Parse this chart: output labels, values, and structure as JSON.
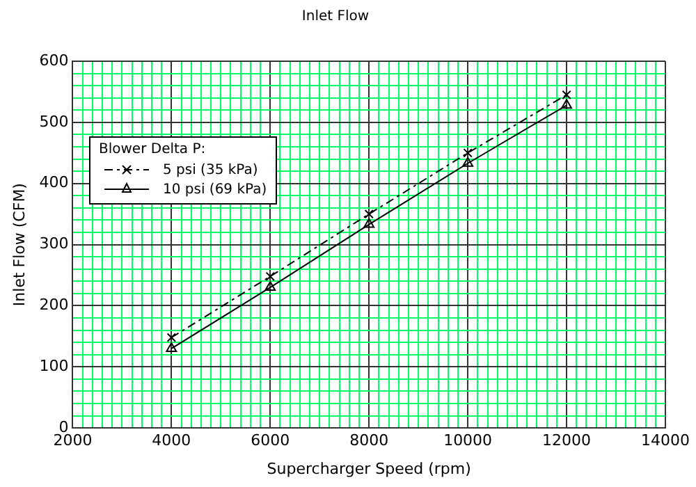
{
  "chart_data": {
    "type": "line",
    "title": "Inlet Flow",
    "xlabel": "Supercharger Speed (rpm)",
    "ylabel": "Inlet Flow (CFM)",
    "legend_title": "Blower Delta P:",
    "legend": "top left",
    "grid": true,
    "x": [
      4000,
      6000,
      8000,
      10000,
      12000
    ],
    "series": [
      {
        "name": "5 psi (35 kPa)",
        "color": "#000000",
        "values": [
          148,
          248,
          350,
          450,
          545
        ],
        "marker": "cross",
        "line_style": "dashed"
      },
      {
        "name": "10 psi (69 kPa)",
        "color": "#000000",
        "values": [
          130,
          230,
          333,
          433,
          528
        ],
        "marker": "triangle",
        "line_style": "solid"
      }
    ],
    "xlim": [
      2000,
      14000
    ],
    "xticks": [
      2000,
      {
        "value": 2200,
        "label": null
      },
      {
        "value": 2400,
        "label": null
      },
      {
        "value": 2600,
        "label": null
      },
      {
        "value": 2800,
        "label": null
      },
      {
        "value": 3000,
        "label": null
      },
      {
        "value": 3200,
        "label": null
      },
      {
        "value": 3400,
        "label": null
      },
      {
        "value": 3600,
        "label": null
      },
      {
        "value": 3800,
        "label": null
      },
      4000,
      {
        "value": 4200,
        "label": null
      },
      {
        "value": 4400,
        "label": null
      },
      {
        "value": 4600,
        "label": null
      },
      {
        "value": 4800,
        "label": null
      },
      {
        "value": 5000,
        "label": null
      },
      {
        "value": 5200,
        "label": null
      },
      {
        "value": 5400,
        "label": null
      },
      {
        "value": 5600,
        "label": null
      },
      {
        "value": 5800,
        "label": null
      },
      6000,
      {
        "value": 6200,
        "label": null
      },
      {
        "value": 6400,
        "label": null
      },
      {
        "value": 6600,
        "label": null
      },
      {
        "value": 6800,
        "label": null
      },
      {
        "value": 7000,
        "label": null
      },
      {
        "value": 7200,
        "label": null
      },
      {
        "value": 7400,
        "label": null
      },
      {
        "value": 7600,
        "label": null
      },
      {
        "value": 7800,
        "label": null
      },
      8000,
      {
        "value": 8200,
        "label": null
      },
      {
        "value": 8400,
        "label": null
      },
      {
        "value": 8600,
        "label": null
      },
      {
        "value": 8800,
        "label": null
      },
      {
        "value": 9000,
        "label": null
      },
      {
        "value": 9200,
        "label": null
      },
      {
        "value": 9400,
        "label": null
      },
      {
        "value": 9600,
        "label": null
      },
      {
        "value": 9800,
        "label": null
      },
      10000,
      {
        "value": 10200,
        "label": null
      },
      {
        "value": 10400,
        "label": null
      },
      {
        "value": 10600,
        "label": null
      },
      {
        "value": 10800,
        "label": null
      },
      {
        "value": 11000,
        "label": null
      },
      {
        "value": 11200,
        "label": null
      },
      {
        "value": 11400,
        "label": null
      },
      {
        "value": 11600,
        "label": null
      },
      {
        "value": 11800,
        "label": null
      },
      12000,
      {
        "value": 12200,
        "label": null
      },
      {
        "value": 12400,
        "label": null
      },
      {
        "value": 12600,
        "label": null
      },
      {
        "value": 12800,
        "label": null
      },
      {
        "value": 13000,
        "label": null
      },
      {
        "value": 13200,
        "label": null
      },
      {
        "value": 13400,
        "label": null
      },
      {
        "value": 13600,
        "label": null
      },
      {
        "value": 13800,
        "label": null
      },
      14000
    ],
    "ylim": [
      0,
      600
    ],
    "yticks": [
      0,
      {
        "value": 20,
        "label": null
      },
      {
        "value": 40,
        "label": null
      },
      {
        "value": 60,
        "label": null
      },
      {
        "value": 80,
        "label": null
      },
      100,
      {
        "value": 120,
        "label": null
      },
      {
        "value": 140,
        "label": null
      },
      {
        "value": 160,
        "label": null
      },
      {
        "value": 180,
        "label": null
      },
      200,
      {
        "value": 220,
        "label": null
      },
      {
        "value": 240,
        "label": null
      },
      {
        "value": 260,
        "label": null
      },
      {
        "value": 280,
        "label": null
      },
      300,
      {
        "value": 320,
        "label": null
      },
      {
        "value": 340,
        "label": null
      },
      {
        "value": 360,
        "label": null
      },
      {
        "value": 380,
        "label": null
      },
      400,
      {
        "value": 420,
        "label": null
      },
      {
        "value": 440,
        "label": null
      },
      {
        "value": 460,
        "label": null
      },
      {
        "value": 480,
        "label": null
      },
      500,
      {
        "value": 520,
        "label": null
      },
      {
        "value": 540,
        "label": null
      },
      {
        "value": 560,
        "label": null
      },
      {
        "value": 580,
        "label": null
      },
      600
    ]
  }
}
